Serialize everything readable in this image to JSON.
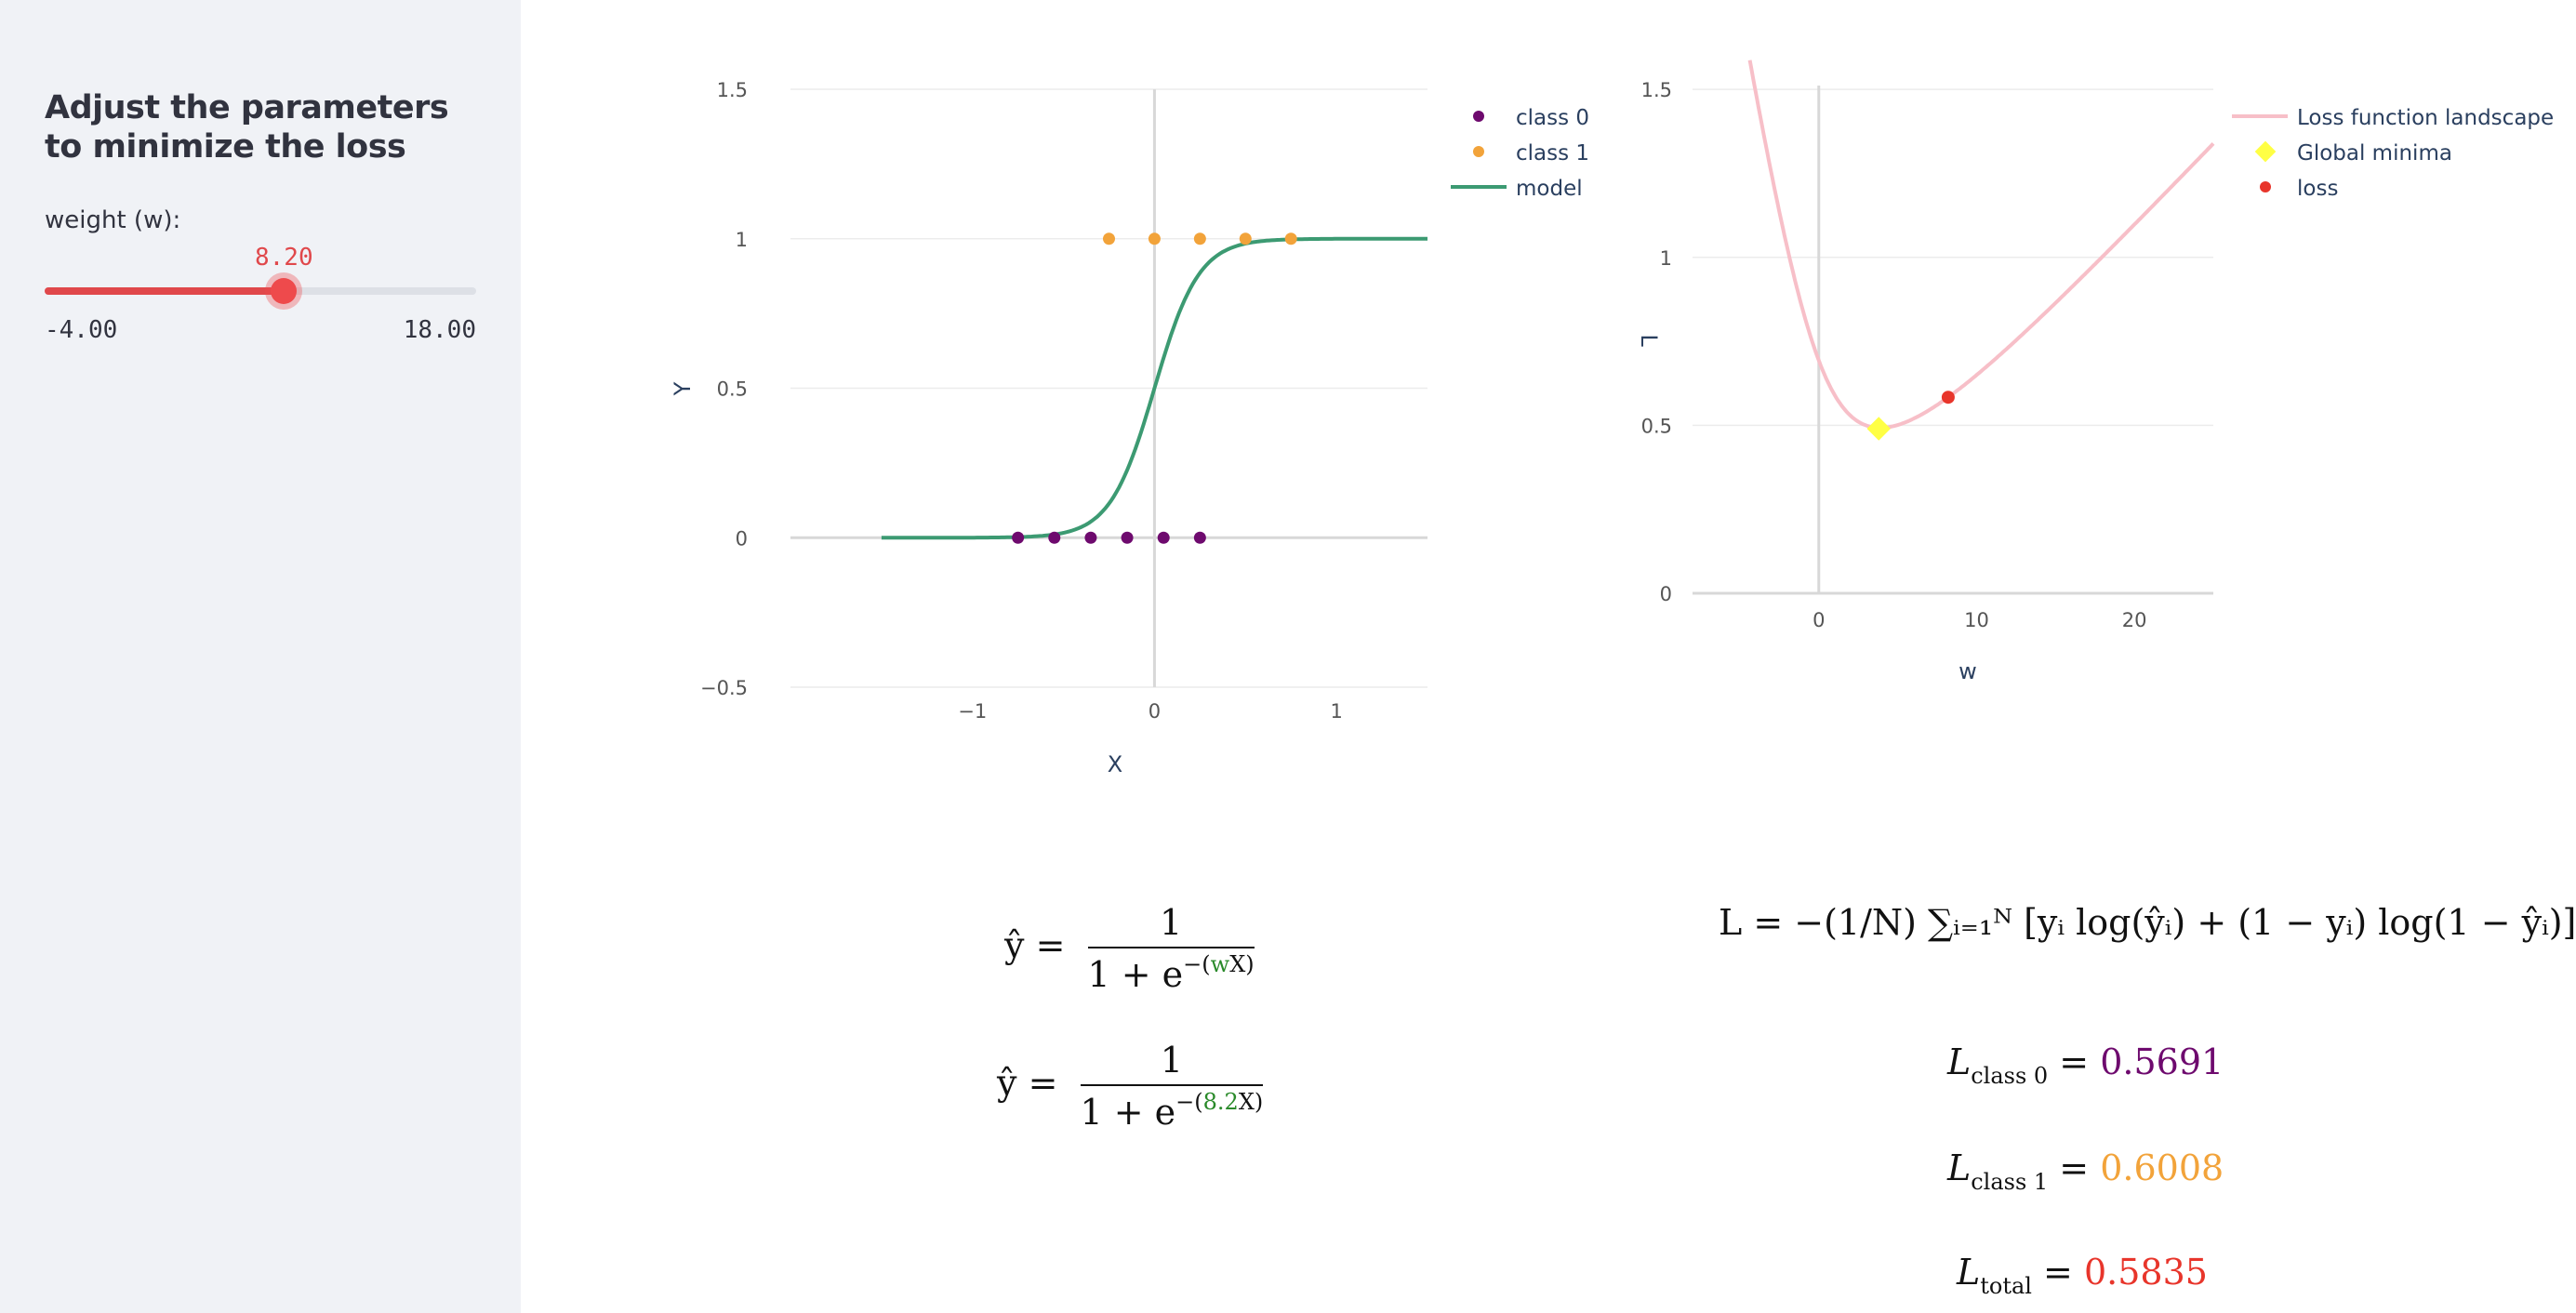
{
  "sidebar": {
    "title": "Adjust the parameters to minimize the loss",
    "slider": {
      "label": "weight (w):",
      "value": 8.2,
      "value_text": "8.20",
      "min": -4,
      "max": 18,
      "min_text": "-4.00",
      "max_text": "18.00"
    }
  },
  "colors": {
    "accent": "#e0484b",
    "class0": "#6e0a6e",
    "class1": "#f2a33a",
    "model": "#3c9a72",
    "landscape": "#f7bfc8",
    "minima": "#ffff44",
    "loss": "#e8352b"
  },
  "chart_data": [
    {
      "type": "scatter",
      "xlabel": "X",
      "ylabel": "Y",
      "xticks": [
        "−1",
        "0",
        "1"
      ],
      "yticks": [
        "−0.5",
        "0",
        "0.5",
        "1",
        "1.5"
      ],
      "xlim": [
        -2,
        1.5
      ],
      "ylim": [
        -0.5,
        1.5
      ],
      "legend": "top-right",
      "series": [
        {
          "name": "class 0",
          "mode": "markers",
          "x": [
            -0.75,
            -0.55,
            -0.35,
            -0.15,
            0.05,
            0.25
          ],
          "y": [
            0,
            0,
            0,
            0,
            0,
            0
          ]
        },
        {
          "name": "class 1",
          "mode": "markers",
          "x": [
            -0.25,
            0.0,
            0.25,
            0.5,
            0.75
          ],
          "y": [
            1,
            1,
            1,
            1,
            1
          ]
        },
        {
          "name": "model",
          "mode": "line",
          "function": "1/(1+exp(-8.2x))"
        }
      ]
    },
    {
      "type": "line",
      "xlabel": "w",
      "ylabel": "L",
      "xticks": [
        "0",
        "10",
        "20"
      ],
      "yticks": [
        "0",
        "0.5",
        "1",
        "1.5"
      ],
      "xlim": [
        -8,
        25
      ],
      "ylim": [
        0,
        1.6
      ],
      "legend": "top-right",
      "series": [
        {
          "name": "Loss function landscape",
          "mode": "line"
        },
        {
          "name": "Global minima",
          "mode": "marker",
          "x": [
            3.8
          ],
          "y": [
            0.49
          ]
        },
        {
          "name": "loss",
          "mode": "marker",
          "x": [
            8.2
          ],
          "y": [
            0.5835
          ]
        }
      ]
    }
  ],
  "equations": {
    "yhat": "ŷ",
    "equals": "=",
    "one": "1",
    "den_base": "1 + e",
    "exp_symbolic_pre": "−(",
    "exp_symbolic_w": "w",
    "exp_symbolic_post": "X)",
    "exp_numeric_pre": "−(",
    "exp_numeric_w": "8.2",
    "exp_numeric_post": "X)",
    "loss_formula": "L = −(1/N) ∑ᵢ₌₁ᴺ [yᵢ log(ŷᵢ) + (1 − yᵢ) log(1 − ŷᵢ)]"
  },
  "losses": [
    {
      "label": "L",
      "sub": "class 0",
      "value": "0.5691",
      "color": "#6e0a6e"
    },
    {
      "label": "L",
      "sub": "class 1",
      "value": "0.6008",
      "color": "#f2a33a"
    },
    {
      "label": "L",
      "sub": "total",
      "value": "0.5835",
      "color": "#e8352b"
    }
  ]
}
